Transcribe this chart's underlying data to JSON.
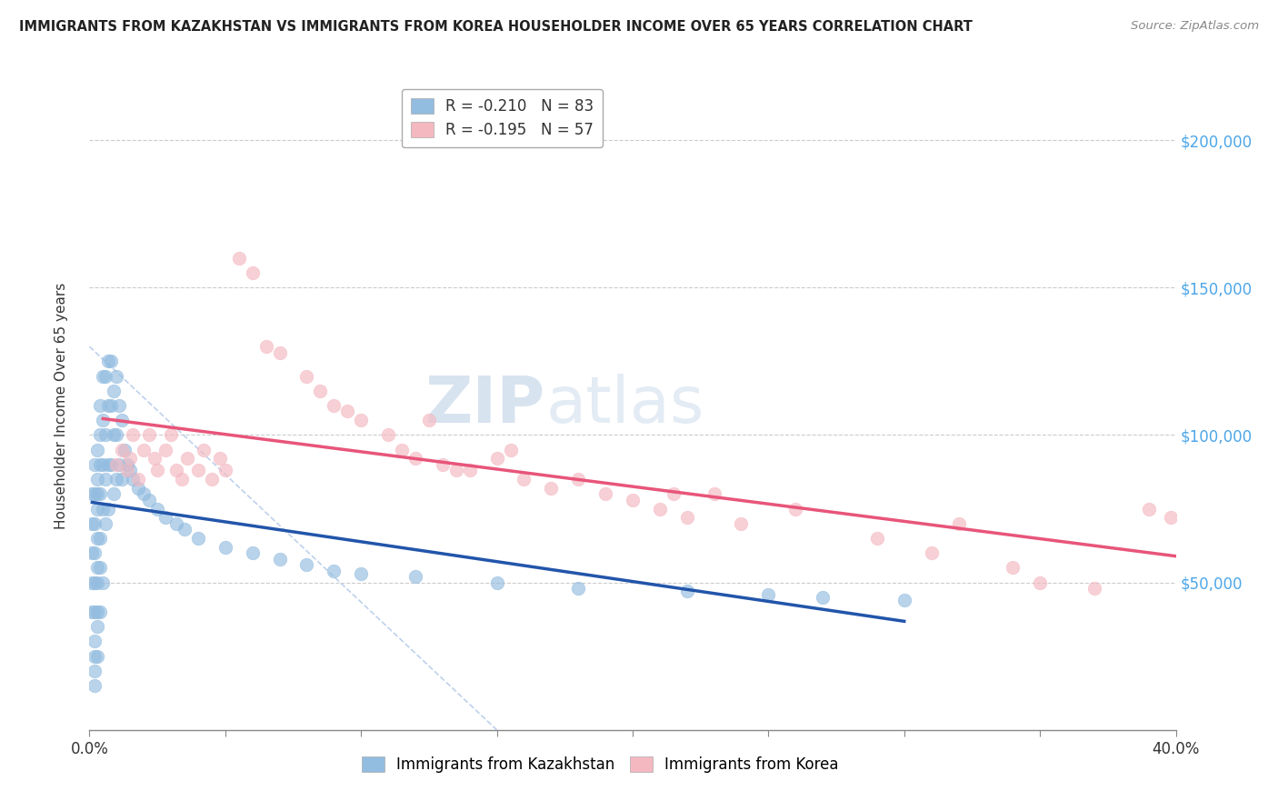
{
  "title": "IMMIGRANTS FROM KAZAKHSTAN VS IMMIGRANTS FROM KOREA HOUSEHOLDER INCOME OVER 65 YEARS CORRELATION CHART",
  "source": "Source: ZipAtlas.com",
  "ylabel": "Householder Income Over 65 years",
  "xlim": [
    0.0,
    0.4
  ],
  "ylim": [
    0,
    220000
  ],
  "x_ticks": [
    0.0,
    0.05,
    0.1,
    0.15,
    0.2,
    0.25,
    0.3,
    0.35,
    0.4
  ],
  "y_tick_labels": [
    "$50,000",
    "$100,000",
    "$150,000",
    "$200,000"
  ],
  "y_ticks": [
    50000,
    100000,
    150000,
    200000
  ],
  "legend_kazakhstan": "R = -0.210   N = 83",
  "legend_korea": "R = -0.195   N = 57",
  "color_kazakhstan": "#92bce0",
  "color_korea": "#f4b8c1",
  "line_color_kazakhstan": "#2255aa",
  "line_color_korea": "#e8557a",
  "line_color_dashed": "#aec6e8",
  "watermark_zip": "ZIP",
  "watermark_atlas": "atlas",
  "kazakhstan_x": [
    0.001,
    0.001,
    0.001,
    0.001,
    0.001,
    0.002,
    0.002,
    0.002,
    0.002,
    0.002,
    0.002,
    0.002,
    0.002,
    0.002,
    0.002,
    0.003,
    0.003,
    0.003,
    0.003,
    0.003,
    0.003,
    0.003,
    0.003,
    0.003,
    0.003,
    0.004,
    0.004,
    0.004,
    0.004,
    0.004,
    0.004,
    0.004,
    0.005,
    0.005,
    0.005,
    0.005,
    0.005,
    0.006,
    0.006,
    0.006,
    0.006,
    0.007,
    0.007,
    0.007,
    0.007,
    0.008,
    0.008,
    0.008,
    0.009,
    0.009,
    0.009,
    0.01,
    0.01,
    0.01,
    0.011,
    0.011,
    0.012,
    0.012,
    0.013,
    0.014,
    0.015,
    0.016,
    0.018,
    0.02,
    0.022,
    0.025,
    0.028,
    0.032,
    0.035,
    0.04,
    0.05,
    0.06,
    0.07,
    0.08,
    0.09,
    0.1,
    0.12,
    0.15,
    0.18,
    0.22,
    0.25,
    0.27,
    0.3
  ],
  "kazakhstan_y": [
    80000,
    70000,
    60000,
    50000,
    40000,
    90000,
    80000,
    70000,
    60000,
    50000,
    40000,
    30000,
    25000,
    20000,
    15000,
    95000,
    85000,
    80000,
    75000,
    65000,
    55000,
    50000,
    40000,
    35000,
    25000,
    110000,
    100000,
    90000,
    80000,
    65000,
    55000,
    40000,
    120000,
    105000,
    90000,
    75000,
    50000,
    120000,
    100000,
    85000,
    70000,
    125000,
    110000,
    90000,
    75000,
    125000,
    110000,
    90000,
    115000,
    100000,
    80000,
    120000,
    100000,
    85000,
    110000,
    90000,
    105000,
    85000,
    95000,
    90000,
    88000,
    85000,
    82000,
    80000,
    78000,
    75000,
    72000,
    70000,
    68000,
    65000,
    62000,
    60000,
    58000,
    56000,
    54000,
    53000,
    52000,
    50000,
    48000,
    47000,
    46000,
    45000,
    44000
  ],
  "korea_x": [
    0.01,
    0.012,
    0.014,
    0.015,
    0.016,
    0.018,
    0.02,
    0.022,
    0.024,
    0.025,
    0.028,
    0.03,
    0.032,
    0.034,
    0.036,
    0.04,
    0.042,
    0.045,
    0.048,
    0.05,
    0.055,
    0.06,
    0.065,
    0.07,
    0.08,
    0.085,
    0.09,
    0.095,
    0.1,
    0.11,
    0.115,
    0.12,
    0.125,
    0.13,
    0.135,
    0.14,
    0.15,
    0.155,
    0.16,
    0.17,
    0.18,
    0.19,
    0.2,
    0.21,
    0.215,
    0.22,
    0.23,
    0.24,
    0.26,
    0.29,
    0.31,
    0.32,
    0.34,
    0.35,
    0.37,
    0.39,
    0.398
  ],
  "korea_y": [
    90000,
    95000,
    88000,
    92000,
    100000,
    85000,
    95000,
    100000,
    92000,
    88000,
    95000,
    100000,
    88000,
    85000,
    92000,
    88000,
    95000,
    85000,
    92000,
    88000,
    160000,
    155000,
    130000,
    128000,
    120000,
    115000,
    110000,
    108000,
    105000,
    100000,
    95000,
    92000,
    105000,
    90000,
    88000,
    88000,
    92000,
    95000,
    85000,
    82000,
    85000,
    80000,
    78000,
    75000,
    80000,
    72000,
    80000,
    70000,
    75000,
    65000,
    60000,
    70000,
    55000,
    50000,
    48000,
    75000,
    72000
  ]
}
